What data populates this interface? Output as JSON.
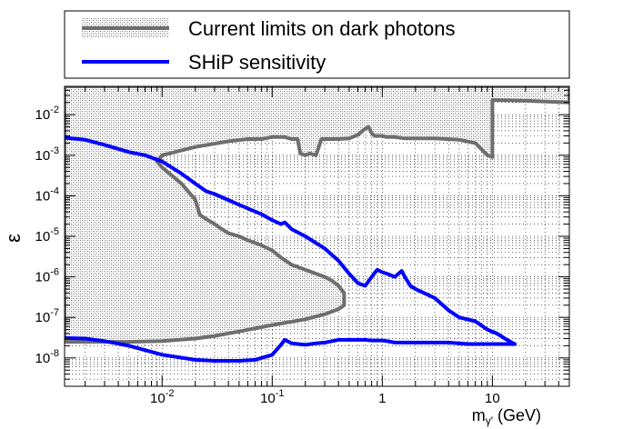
{
  "chart_data": {
    "type": "line",
    "title": "",
    "xlabel": "m",
    "xlabel_sub": "γ'",
    "xlabel_unit": " (GeV)",
    "ylabel": "ε",
    "x_scale": "log",
    "y_scale": "log",
    "xlim": [
      0.0013,
      50
    ],
    "ylim": [
      2e-09,
      0.05
    ],
    "grid": true,
    "legend_position": "top",
    "x_ticks": [
      {
        "value": 0.01,
        "base": "10",
        "exp": "-2"
      },
      {
        "value": 0.1,
        "base": "10",
        "exp": "-1"
      },
      {
        "value": 1,
        "base": "1",
        "exp": ""
      },
      {
        "value": 10,
        "base": "10",
        "exp": ""
      }
    ],
    "y_ticks": [
      {
        "value": 0.01,
        "base": "10",
        "exp": "-2"
      },
      {
        "value": 0.001,
        "base": "10",
        "exp": "-3"
      },
      {
        "value": 0.0001,
        "base": "10",
        "exp": "-4"
      },
      {
        "value": 1e-05,
        "base": "10",
        "exp": "-5"
      },
      {
        "value": 1e-06,
        "base": "10",
        "exp": "-6"
      },
      {
        "value": 1e-07,
        "base": "10",
        "exp": "-7"
      },
      {
        "value": 1e-08,
        "base": "10",
        "exp": "-8"
      }
    ],
    "series": [
      {
        "name": "Current limits on dark photons",
        "style": "hatched-region",
        "color": "#6e6e6e",
        "fill_color": "#bdbdbd",
        "polygons": [
          {
            "x": [
              0.0013,
              0.005,
              0.01,
              0.02,
              0.03,
              0.05,
              0.1,
              0.2,
              0.3,
              0.4,
              0.45,
              0.45,
              0.4,
              0.35,
              0.3,
              0.25,
              0.2,
              0.15,
              0.12,
              0.1,
              0.08,
              0.06,
              0.05,
              0.04,
              0.035,
              0.03,
              0.025,
              0.022,
              0.02,
              0.015,
              0.01,
              0.009,
              0.01,
              0.02,
              0.04,
              0.06,
              0.08,
              0.1,
              0.13,
              0.15,
              0.17,
              0.18,
              0.2,
              0.22,
              0.25,
              0.28,
              0.4,
              0.5,
              0.6,
              0.7,
              0.75,
              0.8,
              0.85,
              1.0,
              1.1,
              1.3,
              1.6,
              2.0,
              3.0,
              5.0,
              7.0,
              9.0,
              10.0,
              10.0,
              20.0,
              50.0,
              50.0,
              0.0013
            ],
            "y": [
              2.5e-08,
              2.5e-08,
              2.6e-08,
              3e-08,
              3.5e-08,
              4.5e-08,
              6.5e-08,
              9e-08,
              1.2e-07,
              1.6e-07,
              2e-07,
              4e-07,
              6e-07,
              8e-07,
              1e-06,
              1.2e-06,
              1.5e-06,
              2e-06,
              3e-06,
              4.5e-06,
              6e-06,
              8e-06,
              1e-05,
              1.2e-05,
              1.5e-05,
              2e-05,
              2.7e-05,
              3.4e-05,
              8e-05,
              0.0002,
              0.0005,
              0.0007,
              0.001,
              0.0016,
              0.0022,
              0.0025,
              0.0025,
              0.0028,
              0.0028,
              0.0025,
              0.0025,
              0.0011,
              0.001,
              0.0011,
              0.001,
              0.0025,
              0.0025,
              0.0026,
              0.0032,
              0.0045,
              0.005,
              0.0035,
              0.003,
              0.003,
              0.0028,
              0.0028,
              0.0026,
              0.0026,
              0.0026,
              0.0024,
              0.002,
              0.001,
              0.0009,
              0.023,
              0.022,
              0.02,
              0.05,
              0.05
            ]
          }
        ]
      },
      {
        "name": "SHiP sensitivity",
        "style": "line",
        "color": "#0000ff",
        "x": [
          0.0013,
          0.002,
          0.003,
          0.005,
          0.007,
          0.01,
          0.015,
          0.02,
          0.025,
          0.03,
          0.05,
          0.08,
          0.1,
          0.12,
          0.13,
          0.15,
          0.2,
          0.3,
          0.4,
          0.5,
          0.6,
          0.7,
          0.8,
          0.9,
          1.0,
          1.1,
          1.3,
          1.5,
          1.6,
          1.8,
          2.0,
          3.0,
          4.0,
          5.0,
          7.0,
          9.0,
          11.0,
          13.0,
          15.0,
          16.0,
          15.0,
          12.0,
          10.0,
          8.0,
          6.0,
          4.0,
          2.5,
          1.8,
          1.3,
          1.1,
          1.0,
          0.9,
          0.8,
          0.7,
          0.5,
          0.4,
          0.3,
          0.25,
          0.2,
          0.15,
          0.13,
          0.12,
          0.1,
          0.07,
          0.05,
          0.03,
          0.02,
          0.01,
          0.005,
          0.003,
          0.002,
          0.0013
        ],
        "y": [
          0.0027,
          0.0024,
          0.0018,
          0.0012,
          0.001,
          0.0007,
          0.00035,
          0.0002,
          0.00013,
          0.00011,
          6e-05,
          3.5e-05,
          2.5e-05,
          2e-05,
          2.2e-05,
          1.5e-05,
          1e-05,
          5e-06,
          2.5e-06,
          1.2e-06,
          7e-07,
          6e-07,
          1e-06,
          1.5e-06,
          1.3e-06,
          1.2e-06,
          1e-06,
          1.4e-06,
          1e-06,
          6e-07,
          5e-07,
          3e-07,
          1.5e-07,
          1e-07,
          8e-08,
          5e-08,
          4e-08,
          3e-08,
          2.4e-08,
          2.2e-08,
          2.2e-08,
          2.2e-08,
          2.2e-08,
          2.2e-08,
          2.2e-08,
          2.4e-08,
          2.4e-08,
          2.4e-08,
          2.4e-08,
          2.6e-08,
          2.7e-08,
          2.7e-08,
          2.7e-08,
          2.8e-08,
          2.8e-08,
          2.8e-08,
          2.4e-08,
          2.3e-08,
          2.1e-08,
          2.3e-08,
          2.8e-08,
          2.1e-08,
          1.2e-08,
          9e-09,
          8.5e-09,
          8.5e-09,
          9e-09,
          1.2e-08,
          2e-08,
          2.6e-08,
          3e-08,
          3.1e-08
        ]
      }
    ]
  }
}
